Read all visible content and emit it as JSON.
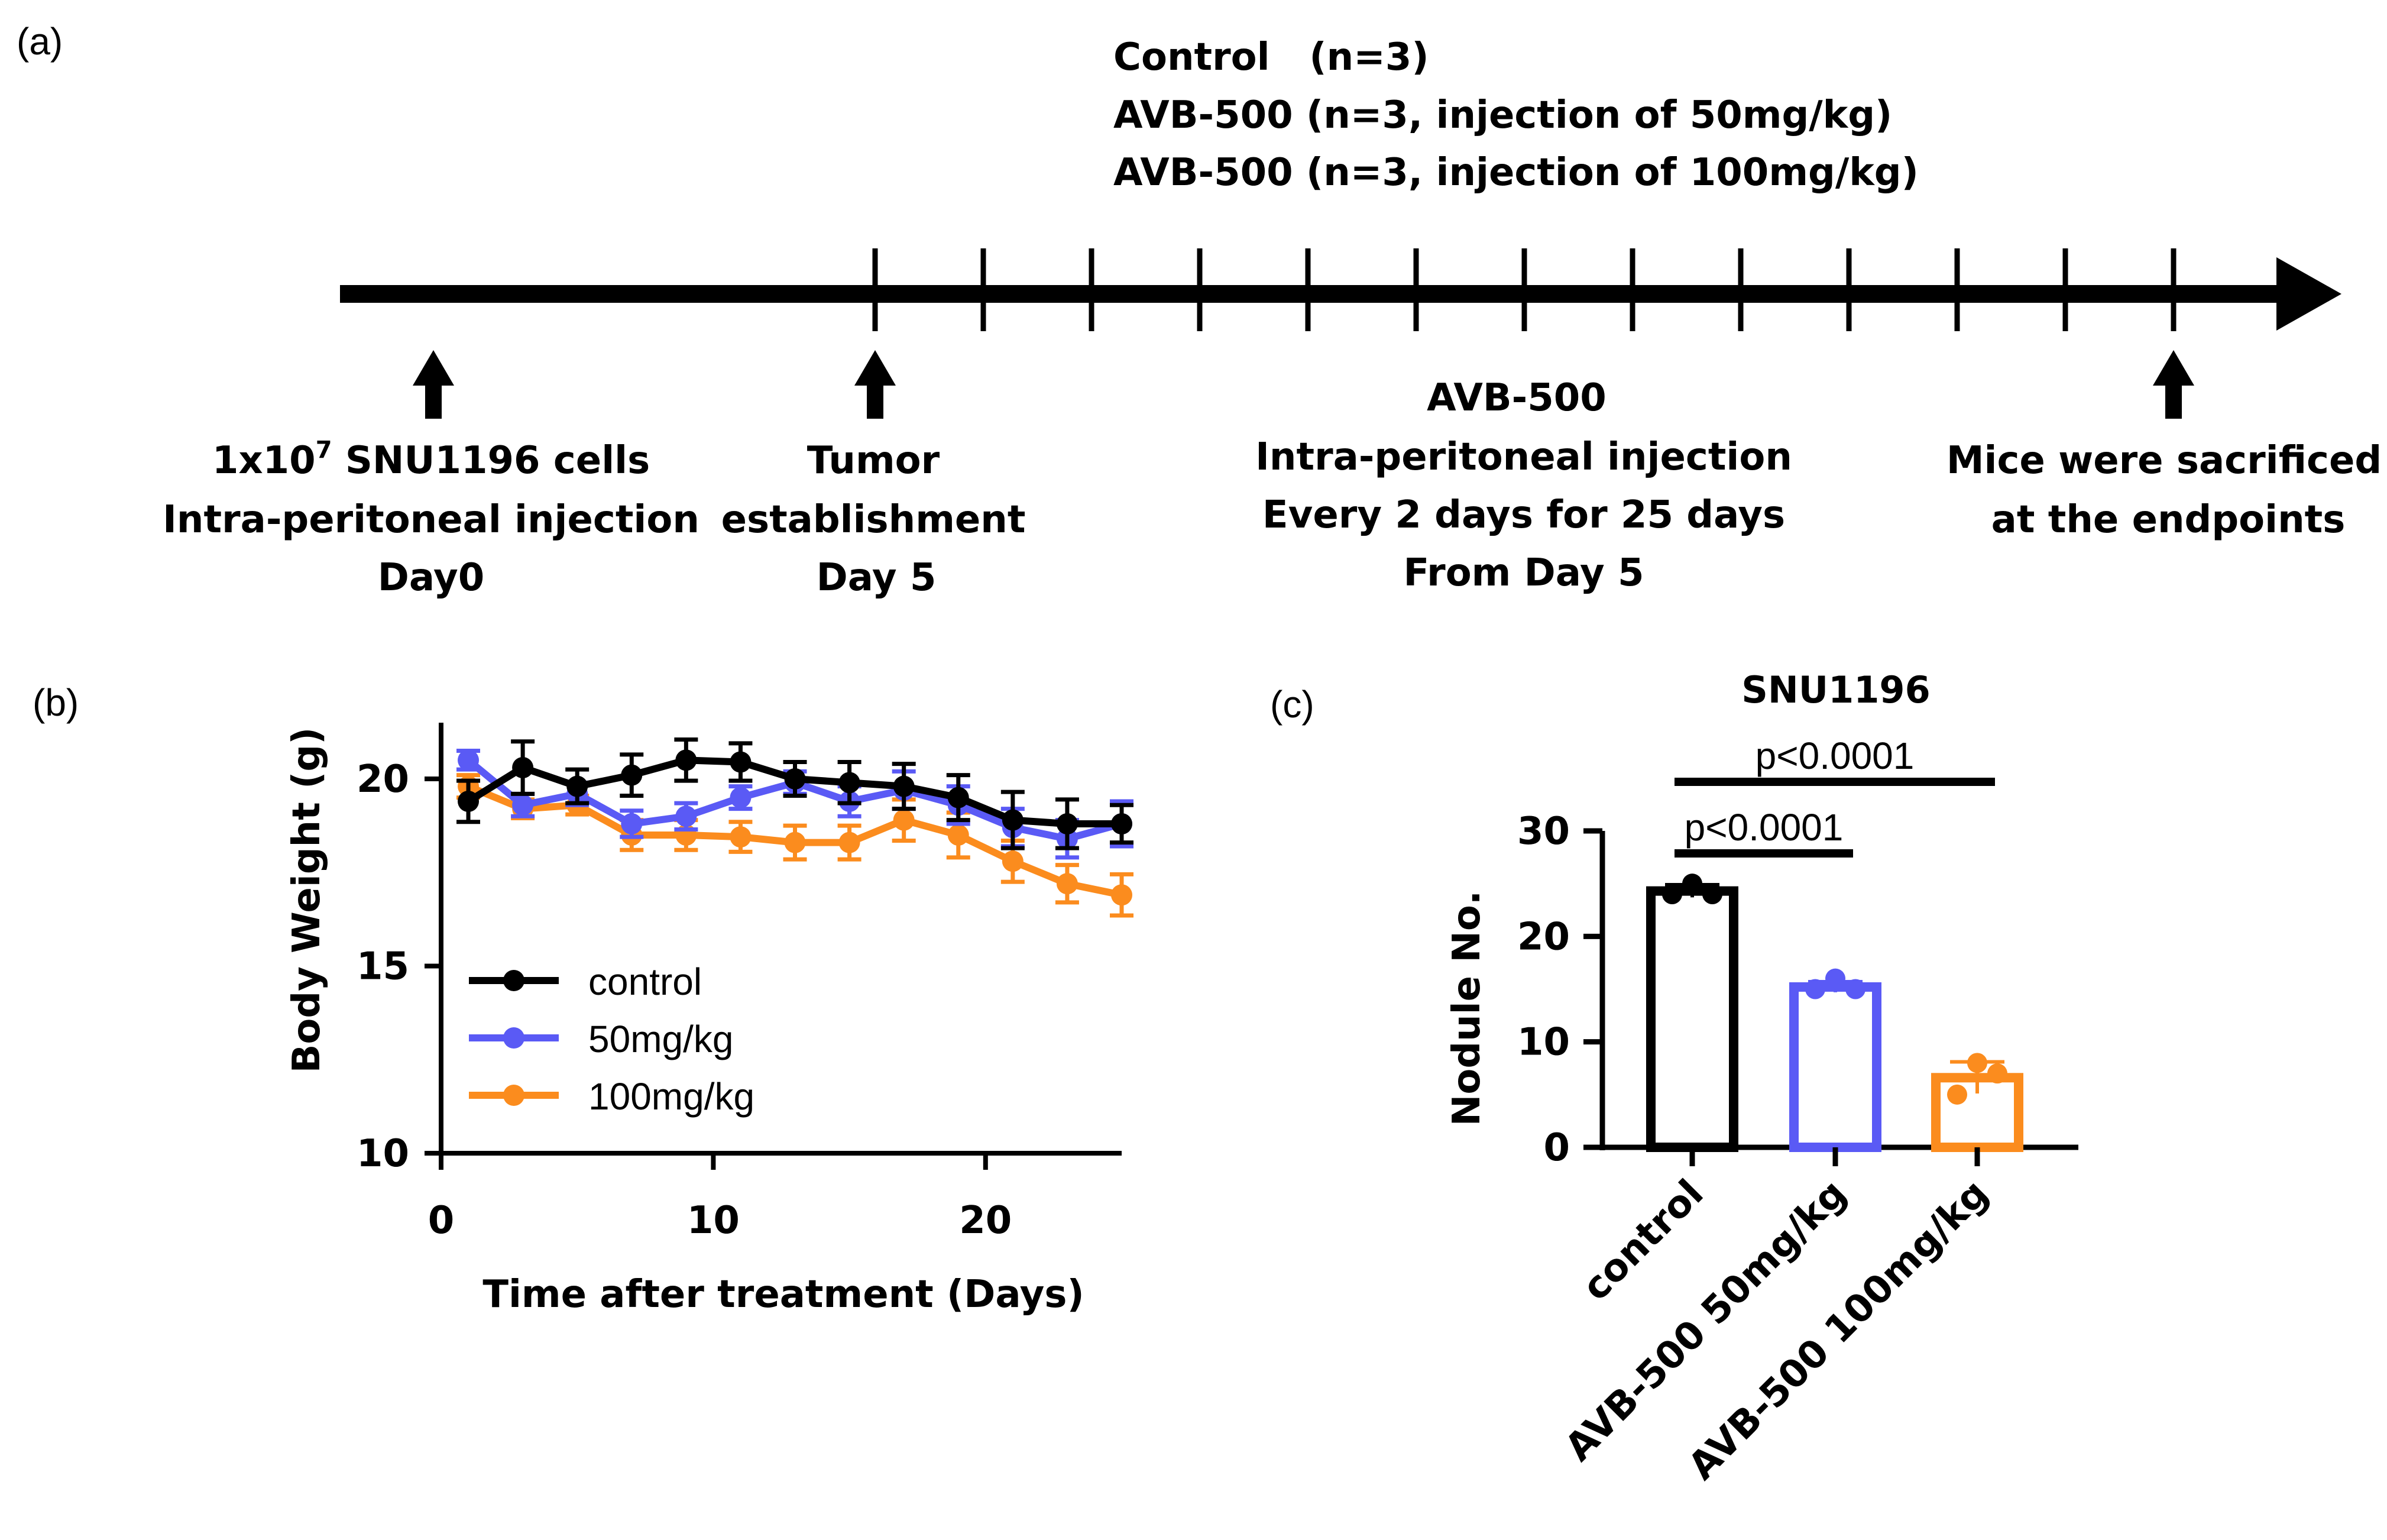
{
  "panels": {
    "a": {
      "label": "(a)"
    },
    "b": {
      "label": "(b)"
    },
    "c": {
      "label": "(c)"
    }
  },
  "colors": {
    "control": "#000000",
    "dose50": "#5a5af5",
    "dose100": "#fb8c1e"
  },
  "timeline": {
    "groups": [
      "Control   (n=3)",
      "AVB-500 (n=3, injection of 50mg/kg)",
      "AVB-500 (n=3, injection of 100mg/kg)"
    ],
    "tick_count": 13,
    "events": [
      {
        "lines": [
          {
            "pre": "1x10",
            "sup": "7",
            "post": " SNU1196 cells"
          },
          {
            "pre": "Intra-peritoneal injection"
          },
          {
            "pre": "Day0"
          }
        ]
      },
      {
        "lines": [
          {
            "pre": "Tumor"
          },
          {
            "pre": "establishment"
          },
          {
            "pre": "Day 5"
          }
        ]
      },
      {
        "lines": [
          {
            "pre": "Mice were sacrificed"
          },
          {
            "pre": "at the endpoints"
          }
        ]
      }
    ],
    "treatment": [
      "AVB-500",
      "Intra-peritoneal injection",
      "Every 2 days for 25 days",
      "From Day 5"
    ]
  },
  "chart_data": [
    {
      "type": "line",
      "xlabel": "Time after treatment (Days)",
      "ylabel": "Body Weight (g)",
      "xlim": [
        0,
        25
      ],
      "ylim": [
        10,
        21.5
      ],
      "xticks": [
        0,
        10,
        20
      ],
      "yticks": [
        10,
        15,
        20
      ],
      "x": [
        1,
        3,
        5,
        7,
        9,
        11,
        13,
        15,
        17,
        19,
        21,
        23,
        25
      ],
      "legend_position": "lower-left",
      "series": [
        {
          "name": "control",
          "color": "#000000",
          "values": [
            19.4,
            20.3,
            19.8,
            20.1,
            20.5,
            20.45,
            20.0,
            19.9,
            19.8,
            19.5,
            18.9,
            18.8,
            18.8
          ],
          "errors": [
            0.55,
            0.7,
            0.45,
            0.55,
            0.55,
            0.5,
            0.45,
            0.55,
            0.6,
            0.6,
            0.75,
            0.65,
            0.5
          ]
        },
        {
          "name": "50mg/kg",
          "color": "#5a5af5",
          "values": [
            20.5,
            19.3,
            19.6,
            18.8,
            19.0,
            19.5,
            19.9,
            19.4,
            19.7,
            19.3,
            18.7,
            18.4,
            18.8
          ],
          "errors": [
            0.25,
            0.3,
            0.3,
            0.35,
            0.35,
            0.3,
            0.3,
            0.4,
            0.5,
            0.5,
            0.5,
            0.5,
            0.6
          ]
        },
        {
          "name": "100mg/kg",
          "color": "#fb8c1e",
          "values": [
            19.8,
            19.2,
            19.3,
            18.5,
            18.5,
            18.45,
            18.3,
            18.3,
            18.9,
            18.5,
            17.8,
            17.2,
            16.9
          ],
          "errors": [
            0.3,
            0.25,
            0.25,
            0.4,
            0.4,
            0.4,
            0.45,
            0.45,
            0.55,
            0.6,
            0.55,
            0.5,
            0.55
          ]
        }
      ]
    },
    {
      "type": "bar",
      "title": "SNU1196",
      "ylabel": "Nodule No.",
      "xlabel": "",
      "ylim": [
        0,
        30
      ],
      "yticks": [
        0,
        10,
        20,
        30
      ],
      "categories": [
        "control",
        "AVB-500 50mg/kg",
        "AVB-500 100mg/kg"
      ],
      "values": [
        24.3,
        15.2,
        6.6
      ],
      "errors": [
        0.6,
        0.5,
        1.5
      ],
      "points": [
        [
          25.0,
          24.0,
          24.0
        ],
        [
          16.0,
          15.0,
          15.0
        ],
        [
          8.0,
          5.0,
          7.0
        ]
      ],
      "colors": [
        "#000000",
        "#5a5af5",
        "#fb8c1e"
      ],
      "comparisons": [
        {
          "from": 0,
          "to": 1,
          "label": "p<0.0001"
        },
        {
          "from": 0,
          "to": 2,
          "label": "p<0.0001"
        }
      ]
    }
  ]
}
